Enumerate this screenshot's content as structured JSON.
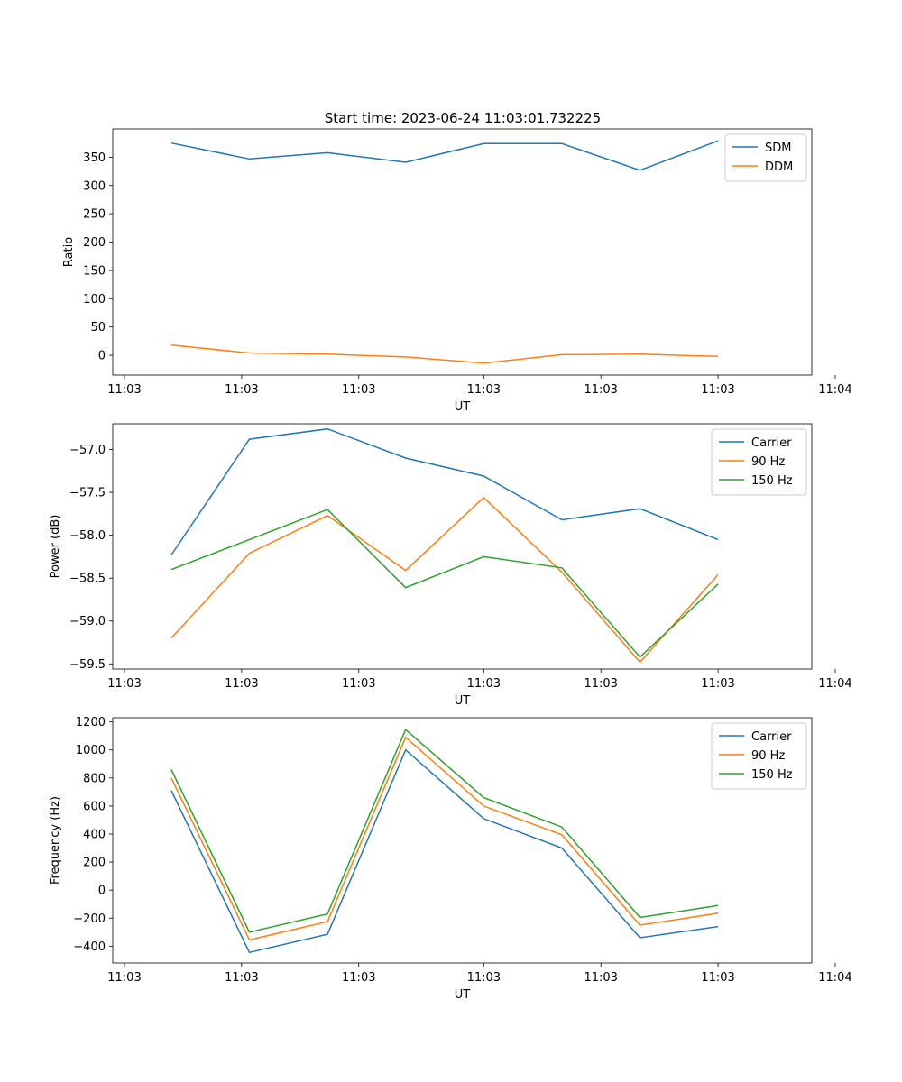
{
  "figure": {
    "title": "Start time: 2023-06-24 11:03:01.732225"
  },
  "chart_data": [
    {
      "type": "line",
      "title": "Start time: 2023-06-24 11:03:01.732225",
      "xlabel": "UT",
      "ylabel": "Ratio",
      "x": [
        1,
        2,
        3,
        4,
        5,
        6,
        7,
        8
      ],
      "xlim": [
        0.25,
        9.2
      ],
      "x_ticks": [
        0.4,
        1.9,
        3.4,
        5.0,
        6.5,
        8.0,
        9.5
      ],
      "x_tick_labels": [
        "11:03",
        "11:03",
        "11:03",
        "11:03",
        "11:03",
        "11:03",
        "11:04"
      ],
      "ylim": [
        -35,
        400
      ],
      "y_ticks": [
        0,
        50,
        100,
        150,
        200,
        250,
        300,
        350
      ],
      "y_tick_labels": [
        "0",
        "50",
        "100",
        "150",
        "200",
        "250",
        "300",
        "350"
      ],
      "grid": false,
      "legend_position": "top-right",
      "series": [
        {
          "name": "SDM",
          "color": "#1f77b4",
          "values": [
            375,
            347,
            358,
            341,
            374,
            374,
            327,
            379
          ]
        },
        {
          "name": "DDM",
          "color": "#ff7f0e",
          "values": [
            18,
            4,
            2,
            -3,
            -14,
            1,
            2,
            -2
          ]
        }
      ]
    },
    {
      "type": "line",
      "title": "",
      "xlabel": "UT",
      "ylabel": "Power (dB)",
      "x": [
        1,
        2,
        3,
        4,
        5,
        6,
        7,
        8
      ],
      "xlim": [
        0.25,
        9.2
      ],
      "x_ticks": [
        0.4,
        1.9,
        3.4,
        5.0,
        6.5,
        8.0,
        9.5
      ],
      "x_tick_labels": [
        "11:03",
        "11:03",
        "11:03",
        "11:03",
        "11:03",
        "11:03",
        "11:04"
      ],
      "ylim": [
        -59.56,
        -56.7
      ],
      "y_ticks": [
        -57.0,
        -57.5,
        -58.0,
        -58.5,
        -59.0,
        -59.5
      ],
      "y_tick_labels": [
        "−57.0",
        "−57.5",
        "−58.0",
        "−58.5",
        "−59.0",
        "−59.5"
      ],
      "grid": false,
      "legend_position": "top-right",
      "series": [
        {
          "name": "Carrier",
          "color": "#1f77b4",
          "values": [
            -58.23,
            -56.88,
            -56.76,
            -57.1,
            -57.31,
            -57.82,
            -57.69,
            -58.05
          ]
        },
        {
          "name": "90 Hz",
          "color": "#ff7f0e",
          "values": [
            -59.2,
            -58.21,
            -57.77,
            -58.41,
            -57.56,
            -58.43,
            -59.48,
            -58.46
          ]
        },
        {
          "name": "150 Hz",
          "color": "#2ca02c",
          "values": [
            -58.4,
            -58.05,
            -57.7,
            -58.61,
            -58.25,
            -58.38,
            -59.42,
            -58.57
          ]
        }
      ]
    },
    {
      "type": "line",
      "title": "",
      "xlabel": "UT",
      "ylabel": "Frequency (Hz)",
      "x": [
        1,
        2,
        3,
        4,
        5,
        6,
        7,
        8
      ],
      "xlim": [
        0.25,
        9.2
      ],
      "x_ticks": [
        0.4,
        1.9,
        3.4,
        5.0,
        6.5,
        8.0,
        9.5
      ],
      "x_tick_labels": [
        "11:03",
        "11:03",
        "11:03",
        "11:03",
        "11:03",
        "11:03",
        "11:04"
      ],
      "ylim": [
        -520,
        1230
      ],
      "y_ticks": [
        -400,
        -200,
        0,
        200,
        400,
        600,
        800,
        1000,
        1200
      ],
      "y_tick_labels": [
        "−400",
        "−200",
        "0",
        "200",
        "400",
        "600",
        "800",
        "1000",
        "1200"
      ],
      "grid": false,
      "legend_position": "top-right",
      "series": [
        {
          "name": "Carrier",
          "color": "#1f77b4",
          "values": [
            710,
            -445,
            -315,
            1000,
            510,
            300,
            -340,
            -260
          ]
        },
        {
          "name": "90 Hz",
          "color": "#ff7f0e",
          "values": [
            800,
            -355,
            -225,
            1090,
            600,
            395,
            -250,
            -165
          ]
        },
        {
          "name": "150 Hz",
          "color": "#2ca02c",
          "values": [
            860,
            -300,
            -170,
            1145,
            660,
            450,
            -195,
            -110
          ]
        }
      ]
    }
  ]
}
